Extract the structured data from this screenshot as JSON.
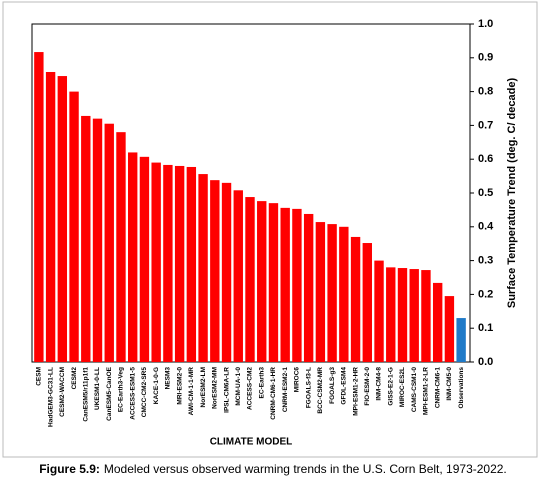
{
  "chart_data": {
    "type": "bar",
    "y_label": "Surface Temperature Trend (deg. C/ decade)",
    "x_label": "CLIMATE MODEL",
    "categories": [
      "CESM",
      "HadGEM3-GC31-LL",
      "CESM2-WACCM",
      "CESM2",
      "CanESM5/r11p1f1",
      "UKESM1-0-LL",
      "CanESM5-CanOE",
      "EC-Earth3-Veg",
      "ACCESS-ESM1-5",
      "CMCC-CM2-SR5",
      "KACE-1-0-G",
      "NESM3",
      "MRI-ESM2-0",
      "AWI-CM-1-1-MR",
      "NorESM2-LM",
      "NorESM2-MM",
      "IPSL-CM6A-LR",
      "MCM-UA-1-0",
      "ACCESS-CM2",
      "EC-Earth3",
      "CNRM-CM6-1-HR",
      "CNRM-ESM2-1",
      "MIROC6",
      "FGOALS-f3-L",
      "BCC-CSM2-MR",
      "FGOALS-g3",
      "GFDL-ESM4",
      "MPI-ESM1-2-HR",
      "FIO-ESM-2-0",
      "INM-CM4-8",
      "GISS-E2-1-G",
      "MIROC-ES2L",
      "CAMS-CSM1-0",
      "MPI-ESM1-2-LR",
      "CNRM-CM6-1",
      "INM-CM5-0",
      "Observations"
    ],
    "values": [
      0.917,
      0.858,
      0.846,
      0.8,
      0.728,
      0.72,
      0.705,
      0.68,
      0.62,
      0.607,
      0.59,
      0.583,
      0.58,
      0.577,
      0.556,
      0.538,
      0.53,
      0.508,
      0.488,
      0.476,
      0.47,
      0.456,
      0.453,
      0.438,
      0.414,
      0.408,
      0.4,
      0.37,
      0.352,
      0.3,
      0.28,
      0.278,
      0.275,
      0.272,
      0.234,
      0.195,
      0.13
    ],
    "colors": [
      "#ff0000",
      "#ff0000",
      "#ff0000",
      "#ff0000",
      "#ff0000",
      "#ff0000",
      "#ff0000",
      "#ff0000",
      "#ff0000",
      "#ff0000",
      "#ff0000",
      "#ff0000",
      "#ff0000",
      "#ff0000",
      "#ff0000",
      "#ff0000",
      "#ff0000",
      "#ff0000",
      "#ff0000",
      "#ff0000",
      "#ff0000",
      "#ff0000",
      "#ff0000",
      "#ff0000",
      "#ff0000",
      "#ff0000",
      "#ff0000",
      "#ff0000",
      "#ff0000",
      "#ff0000",
      "#ff0000",
      "#ff0000",
      "#ff0000",
      "#ff0000",
      "#ff0000",
      "#ff0000",
      "#1f7ac8"
    ],
    "ylim": [
      0,
      1
    ],
    "yticks": [
      {
        "value": 0,
        "label": "0.0"
      },
      0.1,
      0.2,
      0.3,
      0.4,
      0.5,
      0.6,
      0.7,
      0.8,
      0.9,
      {
        "value": 1,
        "label": "1.0"
      }
    ],
    "y_axis_side": "right"
  },
  "caption": {
    "label": "Figure 5.9:",
    "text": "Modeled versus observed warming trends in the U.S. Corn Belt, 1973-2022."
  }
}
